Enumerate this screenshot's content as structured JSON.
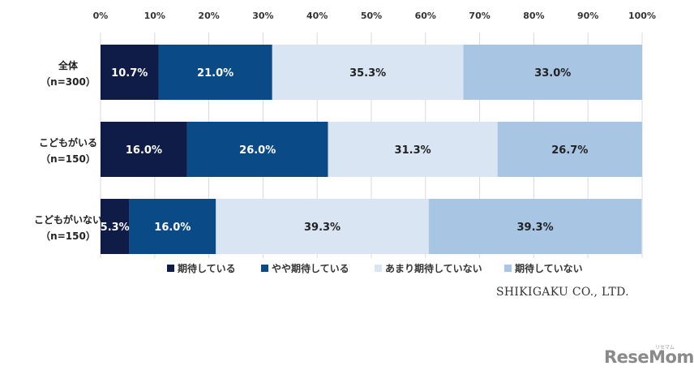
{
  "chart_data": {
    "type": "bar",
    "orientation": "horizontal",
    "stacked": "percent",
    "categories": [
      [
        "全体",
        "（n=300）"
      ],
      [
        "こどもがいる",
        "（n=150）"
      ],
      [
        "こどもがいない",
        "（n=150）"
      ]
    ],
    "x_ticks": [
      "0%",
      "10%",
      "20%",
      "30%",
      "40%",
      "50%",
      "60%",
      "70%",
      "80%",
      "90%",
      "100%"
    ],
    "xlim": [
      0,
      100
    ],
    "grid": true,
    "legend_position": "bottom",
    "series": [
      {
        "name": "期待している",
        "color": "#0f1c47",
        "label_color": "#ffffff",
        "values": [
          10.7,
          16.0,
          5.3
        ],
        "labels": [
          "10.7%",
          "16.0%",
          "5.3%"
        ]
      },
      {
        "name": "やや期待している",
        "color": "#0a4a86",
        "label_color": "#ffffff",
        "values": [
          21.0,
          26.0,
          16.0
        ],
        "labels": [
          "21.0%",
          "26.0%",
          "16.0%"
        ]
      },
      {
        "name": "あまり期待していない",
        "color": "#d9e5f3",
        "label_color": "#222222",
        "values": [
          35.3,
          31.3,
          39.3
        ],
        "labels": [
          "35.3%",
          "31.3%",
          "39.3%"
        ]
      },
      {
        "name": "期待していない",
        "color": "#a8c6e4",
        "label_color": "#222222",
        "values": [
          33.0,
          26.7,
          39.3
        ],
        "labels": [
          "33.0%",
          "26.7%",
          "39.3%"
        ]
      }
    ]
  },
  "footer": {
    "credit": "SHIKIGAKU CO., LTD.",
    "brand": "ReseMom",
    "brand_sub": "リセマム"
  }
}
